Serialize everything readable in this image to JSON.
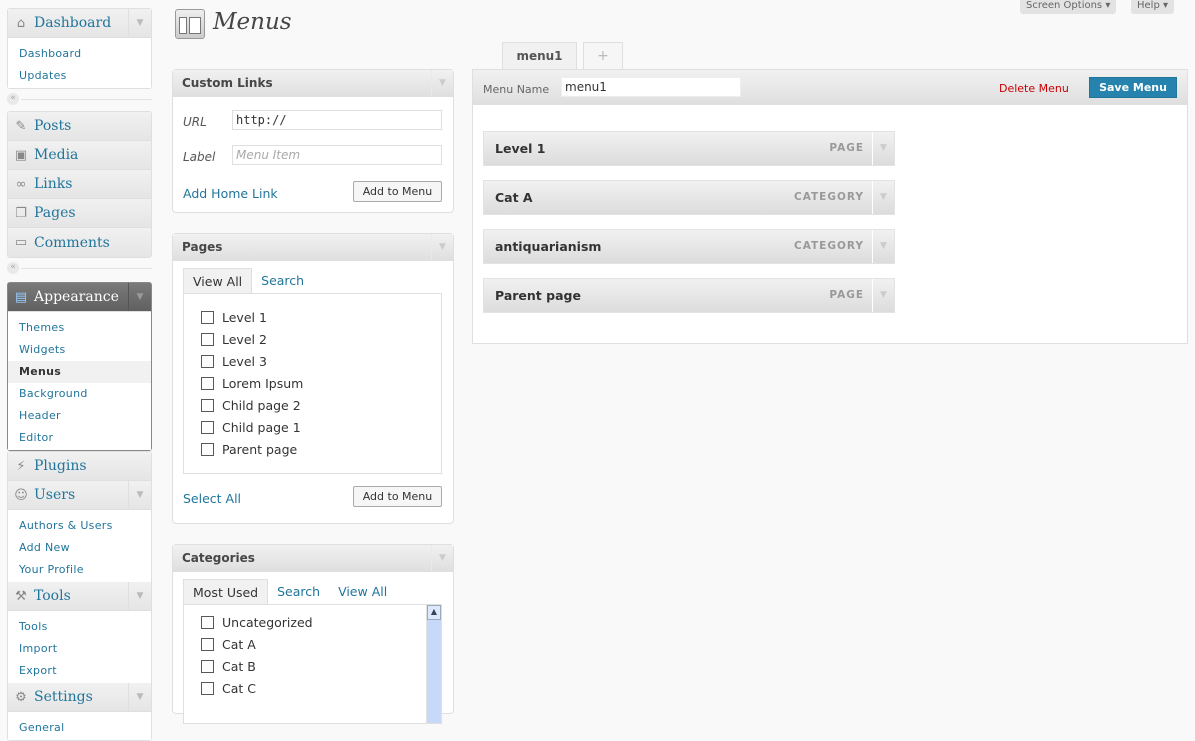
{
  "page_title": "Menus",
  "top_buttons": {
    "screen_options": "Screen Options",
    "help": "Help"
  },
  "sidebar": {
    "dashboard": {
      "label": "Dashboard",
      "items": [
        "Dashboard",
        "Updates"
      ]
    },
    "content": [
      "Posts",
      "Media",
      "Links",
      "Pages",
      "Comments"
    ],
    "appearance": {
      "label": "Appearance",
      "items": [
        "Themes",
        "Widgets",
        "Menus",
        "Background",
        "Header",
        "Editor"
      ],
      "current": "Menus"
    },
    "plugins": "Plugins",
    "users": {
      "label": "Users",
      "items": [
        "Authors & Users",
        "Add New",
        "Your Profile"
      ]
    },
    "tools": {
      "label": "Tools",
      "items": [
        "Tools",
        "Import",
        "Export"
      ]
    },
    "settings": {
      "label": "Settings",
      "items": [
        "General"
      ]
    }
  },
  "custom_links": {
    "title": "Custom Links",
    "url_label": "URL",
    "url_value": "http://",
    "label_label": "Label",
    "label_placeholder": "Menu Item",
    "home_link": "Add Home Link",
    "add_button": "Add to Menu"
  },
  "pages_box": {
    "title": "Pages",
    "tabs": [
      "View All",
      "Search"
    ],
    "items": [
      "Level 1",
      "Level 2",
      "Level 3",
      "Lorem Ipsum",
      "Child page 2",
      "Child page 1",
      "Parent page"
    ],
    "select_all": "Select All",
    "add_button": "Add to Menu"
  },
  "categories_box": {
    "title": "Categories",
    "tabs": [
      "Most Used",
      "Search",
      "View All"
    ],
    "items": [
      "Uncategorized",
      "Cat A",
      "Cat B",
      "Cat C"
    ]
  },
  "menu_tabs": [
    "menu1",
    "+"
  ],
  "menu_editor": {
    "name_label": "Menu Name",
    "name_value": "menu1",
    "delete": "Delete Menu",
    "save": "Save Menu",
    "items": [
      {
        "title": "Level 1",
        "type": "PAGE"
      },
      {
        "title": "Cat A",
        "type": "CATEGORY"
      },
      {
        "title": "antiquarianism",
        "type": "CATEGORY"
      },
      {
        "title": "Parent page",
        "type": "PAGE"
      }
    ]
  },
  "colors": {
    "link": "#21759b",
    "save_button": "#2583ad",
    "delete": "#cc0000"
  }
}
